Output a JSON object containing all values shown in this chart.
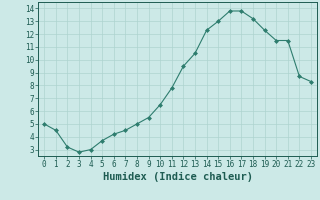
{
  "x": [
    0,
    1,
    2,
    3,
    4,
    5,
    6,
    7,
    8,
    9,
    10,
    11,
    12,
    13,
    14,
    15,
    16,
    17,
    18,
    19,
    20,
    21,
    22,
    23
  ],
  "y": [
    5.0,
    4.5,
    3.2,
    2.8,
    3.0,
    3.7,
    4.2,
    4.5,
    5.0,
    5.5,
    6.5,
    7.8,
    9.5,
    10.5,
    12.3,
    13.0,
    13.8,
    13.8,
    13.2,
    12.3,
    11.5,
    11.5,
    8.7,
    8.3
  ],
  "line_color": "#2e7d6e",
  "marker": "D",
  "marker_size": 2,
  "bg_color": "#cce9e7",
  "grid_color": "#aed4d0",
  "xlabel": "Humidex (Indice chaleur)",
  "xlim": [
    -0.5,
    23.5
  ],
  "ylim": [
    2.5,
    14.5
  ],
  "yticks": [
    3,
    4,
    5,
    6,
    7,
    8,
    9,
    10,
    11,
    12,
    13,
    14
  ],
  "xticks": [
    0,
    1,
    2,
    3,
    4,
    5,
    6,
    7,
    8,
    9,
    10,
    11,
    12,
    13,
    14,
    15,
    16,
    17,
    18,
    19,
    20,
    21,
    22,
    23
  ],
  "tick_label_fontsize": 5.5,
  "xlabel_fontsize": 7.5,
  "line_color_dark": "#1e5c52"
}
